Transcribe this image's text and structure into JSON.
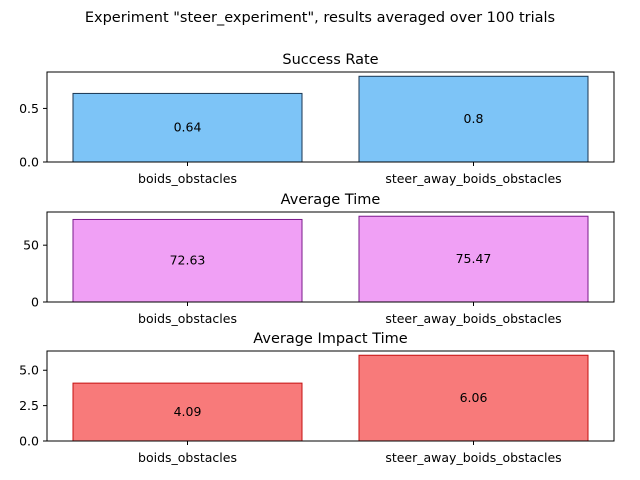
{
  "suptitle": "Experiment \"steer_experiment\", results averaged over 100 trials",
  "chart_data": [
    {
      "type": "bar",
      "title": "Success Rate",
      "xlabel": "",
      "ylabel": "",
      "categories": [
        "boids_obstacles",
        "steer_away_boids_obstacles"
      ],
      "values": [
        0.64,
        0.8
      ],
      "labels": [
        "0.64",
        "0.8"
      ],
      "yticks": [
        0.0,
        0.5
      ],
      "ytick_labels": [
        "0.0",
        "0.5"
      ],
      "ylim": [
        0,
        0.84
      ],
      "bar_color": "#7dc4f7",
      "edge_color": "#1a3550",
      "grid": false
    },
    {
      "type": "bar",
      "title": "Average Time",
      "xlabel": "",
      "ylabel": "",
      "categories": [
        "boids_obstacles",
        "steer_away_boids_obstacles"
      ],
      "values": [
        72.63,
        75.47
      ],
      "labels": [
        "72.63",
        "75.47"
      ],
      "yticks": [
        0,
        50
      ],
      "ytick_labels": [
        "0",
        "50"
      ],
      "ylim": [
        0,
        79.2
      ],
      "bar_color": "#f0a0f5",
      "edge_color": "#7a1a8a",
      "grid": false
    },
    {
      "type": "bar",
      "title": "Average Impact Time",
      "xlabel": "",
      "ylabel": "",
      "categories": [
        "boids_obstacles",
        "steer_away_boids_obstacles"
      ],
      "values": [
        4.09,
        6.06
      ],
      "labels": [
        "4.09",
        "6.06"
      ],
      "yticks": [
        0.0,
        2.5,
        5.0
      ],
      "ytick_labels": [
        "0.0",
        "2.5",
        "5.0"
      ],
      "ylim": [
        0,
        6.36
      ],
      "bar_color": "#f87a7a",
      "edge_color": "#c41010",
      "grid": false
    }
  ]
}
